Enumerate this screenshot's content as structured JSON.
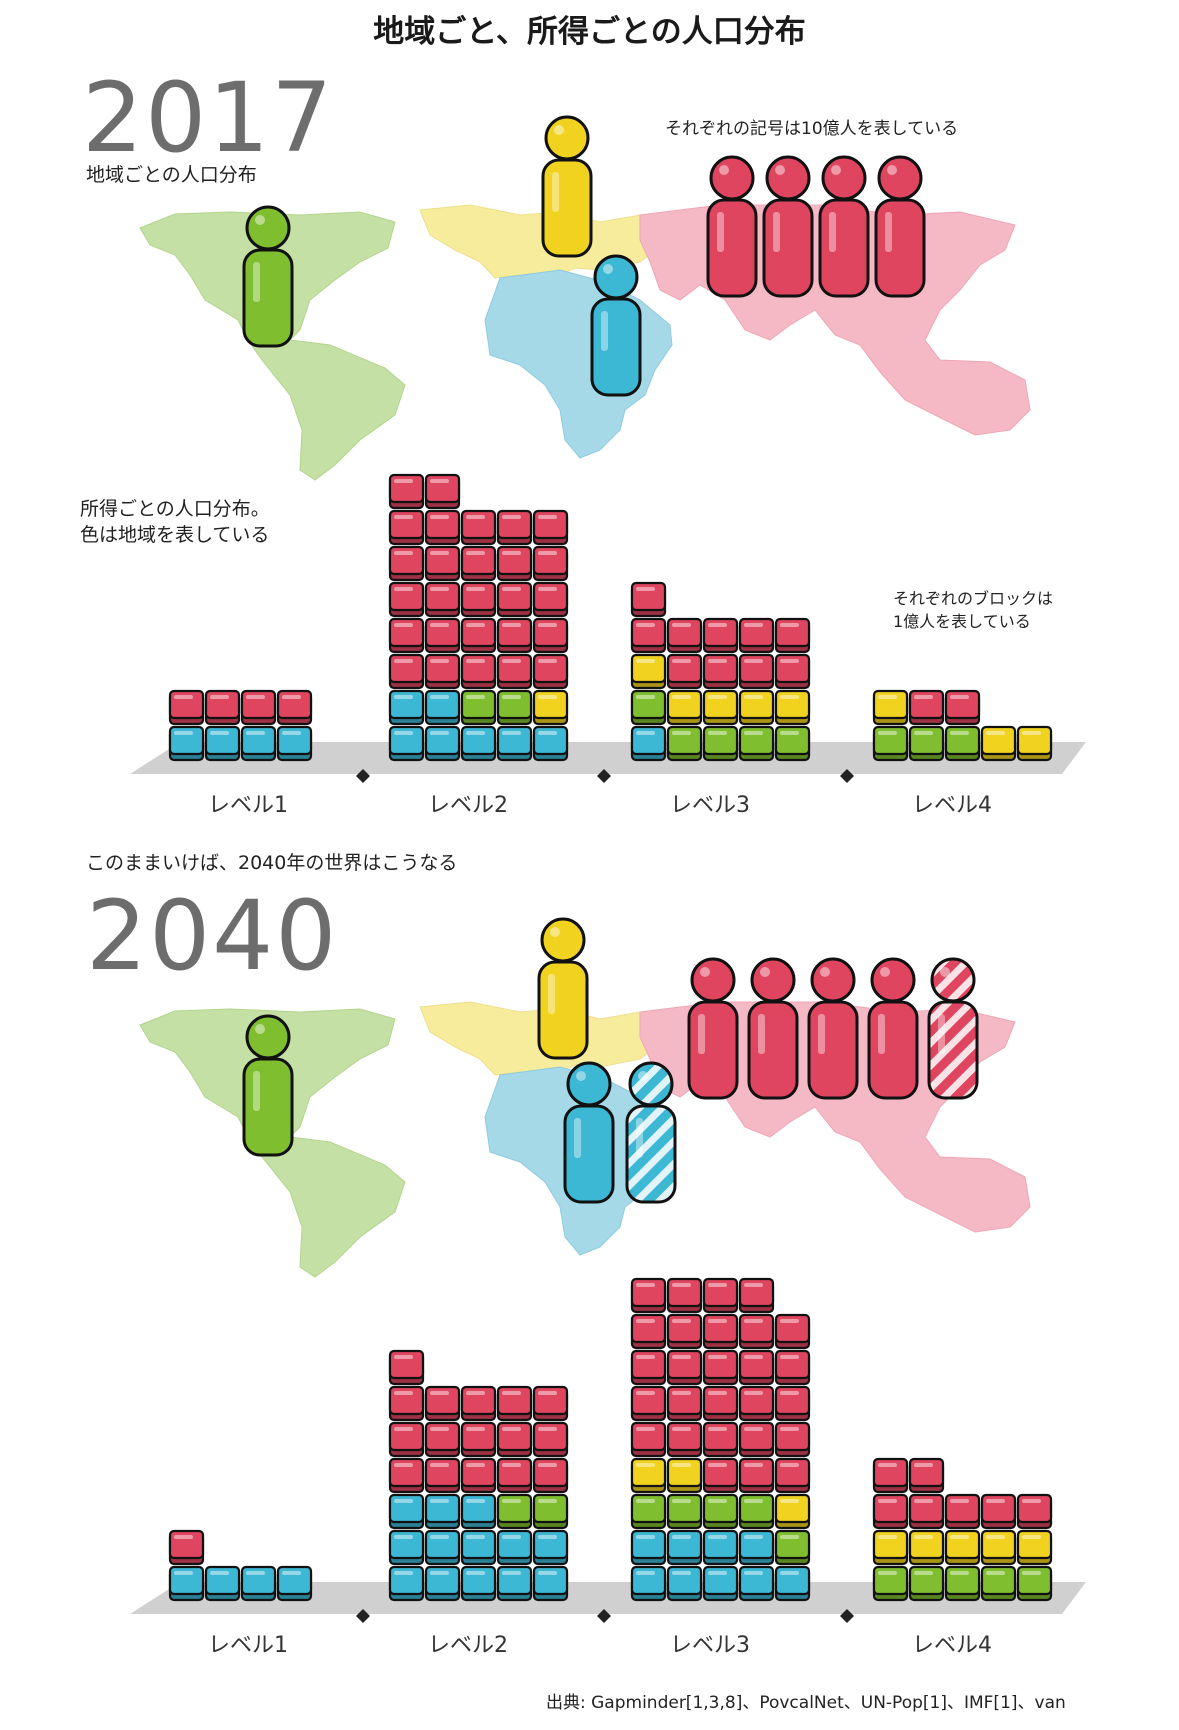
{
  "title": "地域ごと、所得ごとの人口分布",
  "subtitle_2017": "地域ごとの人口分布",
  "income_caption_line1": "所得ごとの人口分布。",
  "income_caption_line2": "色は地域を表している",
  "person_note": "それぞれの記号は10億人を表している",
  "block_note_line1": "それぞれのブロックは",
  "block_note_line2": "1億人を表している",
  "future_caption": "このままいけば、2040年の世界はこうなる",
  "source": "出典: Gapminder[1,3,8]、PovcalNet、UN-Pop[1]、IMF[1]、van",
  "colors": {
    "americas": "#7fbf2f",
    "europe": "#f1d31f",
    "africa": "#3cb7d4",
    "asia": "#e04560",
    "map_americas": "#c5e0a5",
    "map_europe": "#f6ec9c",
    "map_africa": "#a6d9e8",
    "map_asia": "#f5b9c6",
    "ground": "#d0d0d0"
  },
  "chart_data": [
    {
      "type": "bar",
      "year": "2017",
      "unit": "1億人 per block",
      "categories": [
        "レベル1",
        "レベル2",
        "レベル3",
        "レベル4"
      ],
      "series": [
        {
          "name": "Africa",
          "color": "#3cb7d4",
          "values": [
            4,
            7,
            1,
            0
          ]
        },
        {
          "name": "Americas",
          "color": "#7fbf2f",
          "values": [
            0,
            2,
            5,
            3
          ]
        },
        {
          "name": "Europe",
          "color": "#f1d31f",
          "values": [
            0,
            1,
            5,
            3
          ]
        },
        {
          "name": "Asia",
          "color": "#e04560",
          "values": [
            4,
            27,
            10,
            2
          ]
        }
      ],
      "people_per_region_billion": {
        "Americas": 1,
        "Europe": 1,
        "Africa": 1,
        "Asia": 4
      }
    },
    {
      "type": "bar",
      "year": "2040",
      "unit": "1億人 per block",
      "categories": [
        "レベル1",
        "レベル2",
        "レベル3",
        "レベル4"
      ],
      "series": [
        {
          "name": "Africa",
          "color": "#3cb7d4",
          "values": [
            4,
            13,
            9,
            0
          ]
        },
        {
          "name": "Americas",
          "color": "#7fbf2f",
          "values": [
            0,
            2,
            5,
            5
          ]
        },
        {
          "name": "Europe",
          "color": "#f1d31f",
          "values": [
            0,
            0,
            3,
            5
          ]
        },
        {
          "name": "Asia",
          "color": "#e04560",
          "values": [
            1,
            16,
            27,
            7
          ]
        }
      ],
      "people_per_region_billion": {
        "Americas": 1,
        "Europe": 1,
        "Africa": 2,
        "Asia": 5
      }
    }
  ]
}
